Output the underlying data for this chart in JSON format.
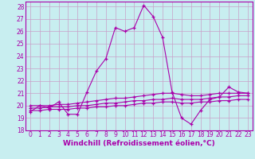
{
  "xlabel": "Windchill (Refroidissement éolien,°C)",
  "bg_color": "#c8eef0",
  "grid_color": "#c8a0c8",
  "line_color": "#aa00aa",
  "xlim": [
    -0.5,
    23.5
  ],
  "ylim": [
    18,
    28.4
  ],
  "yticks": [
    18,
    19,
    20,
    21,
    22,
    23,
    24,
    25,
    26,
    27,
    28
  ],
  "xticks": [
    0,
    1,
    2,
    3,
    4,
    5,
    6,
    7,
    8,
    9,
    10,
    11,
    12,
    13,
    14,
    15,
    16,
    17,
    18,
    19,
    20,
    21,
    22,
    23
  ],
  "series1_x": [
    0,
    1,
    2,
    3,
    4,
    5,
    6,
    7,
    8,
    9,
    10,
    11,
    12,
    13,
    14,
    15,
    16,
    17,
    18,
    19,
    20,
    21,
    22,
    23
  ],
  "series1_y": [
    19.5,
    20.0,
    19.8,
    20.3,
    19.3,
    19.3,
    21.1,
    22.8,
    23.8,
    26.3,
    26.0,
    26.3,
    28.1,
    27.2,
    25.5,
    21.1,
    19.0,
    18.5,
    19.6,
    20.5,
    20.7,
    21.5,
    21.1,
    21.0
  ],
  "series2_x": [
    0,
    1,
    2,
    3,
    4,
    5,
    6,
    7,
    8,
    9,
    10,
    11,
    12,
    13,
    14,
    15,
    16,
    17,
    18,
    19,
    20,
    21,
    22,
    23
  ],
  "series2_y": [
    20.0,
    20.0,
    20.0,
    20.1,
    20.1,
    20.2,
    20.3,
    20.4,
    20.5,
    20.6,
    20.6,
    20.7,
    20.8,
    20.9,
    21.0,
    21.0,
    20.9,
    20.8,
    20.8,
    20.9,
    21.0,
    21.0,
    21.0,
    21.0
  ],
  "series3_x": [
    0,
    1,
    2,
    3,
    4,
    5,
    6,
    7,
    8,
    9,
    10,
    11,
    12,
    13,
    14,
    15,
    16,
    17,
    18,
    19,
    20,
    21,
    22,
    23
  ],
  "series3_y": [
    19.8,
    19.8,
    19.9,
    19.9,
    19.9,
    20.0,
    20.0,
    20.1,
    20.2,
    20.2,
    20.3,
    20.4,
    20.4,
    20.5,
    20.5,
    20.6,
    20.5,
    20.5,
    20.5,
    20.6,
    20.7,
    20.7,
    20.8,
    20.8
  ],
  "series4_x": [
    0,
    1,
    2,
    3,
    4,
    5,
    6,
    7,
    8,
    9,
    10,
    11,
    12,
    13,
    14,
    15,
    16,
    17,
    18,
    19,
    20,
    21,
    22,
    23
  ],
  "series4_y": [
    19.6,
    19.6,
    19.7,
    19.7,
    19.7,
    19.8,
    19.8,
    19.9,
    19.9,
    20.0,
    20.0,
    20.1,
    20.2,
    20.2,
    20.3,
    20.3,
    20.2,
    20.2,
    20.3,
    20.3,
    20.4,
    20.4,
    20.5,
    20.5
  ],
  "tick_fontsize": 5.5,
  "label_fontsize": 6.5,
  "marker": "+"
}
